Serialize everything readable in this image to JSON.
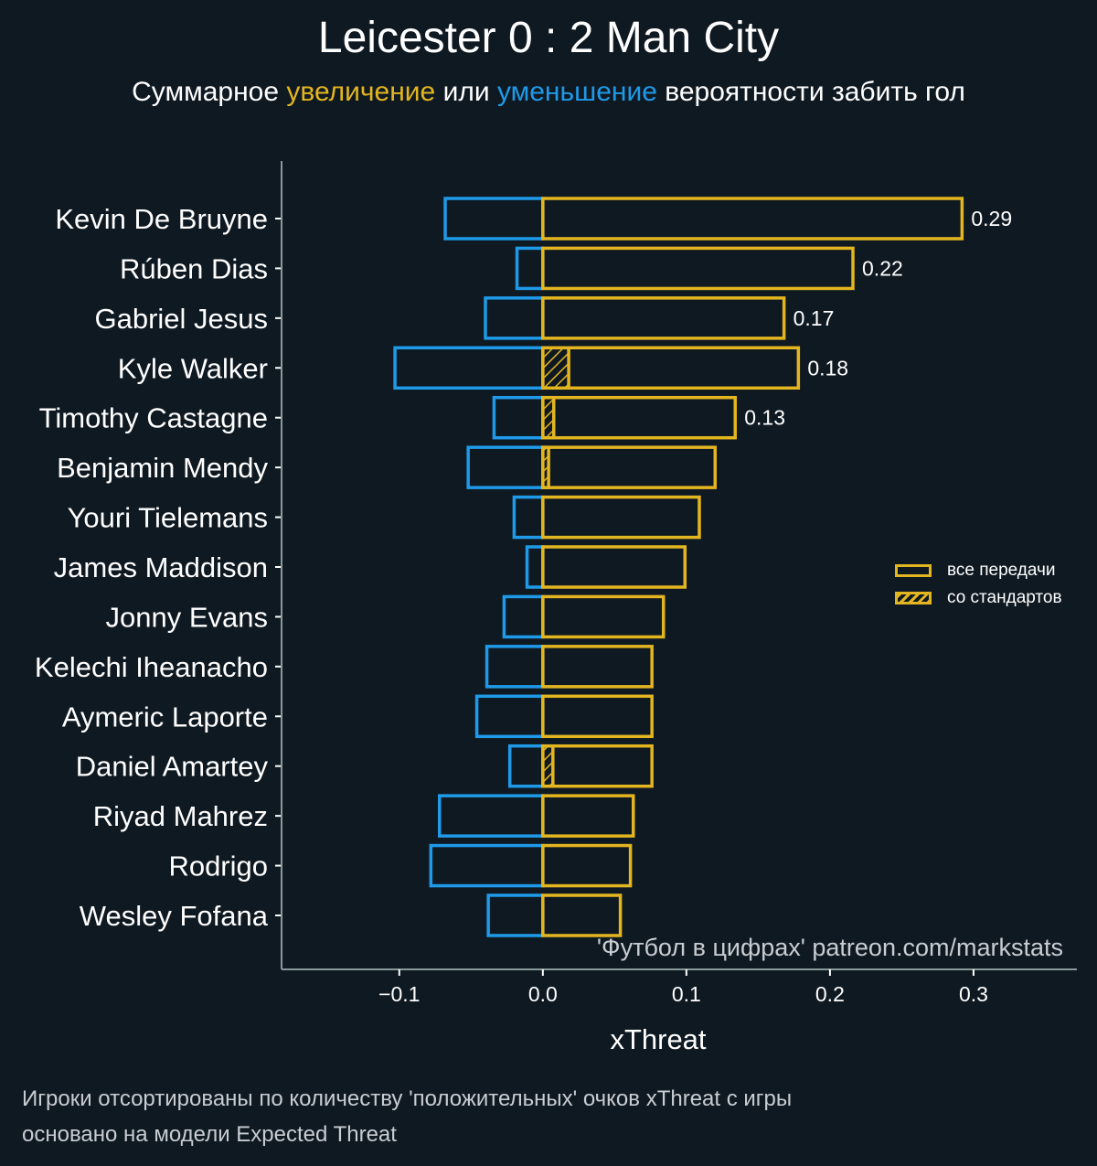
{
  "header": {
    "title": "Leicester 0 : 2 Man City",
    "subtitle_parts": {
      "p1": "Суммарное ",
      "increase": "увеличение",
      "p2": " или ",
      "decrease": "уменьшение",
      "p3": " вероятности забить гол"
    }
  },
  "colors": {
    "background": "#0f1922",
    "positive": "#e3b520",
    "negative": "#1f9ae8",
    "axis": "#8a9a9a",
    "text": "#ffffff",
    "muted_text": "#c8cdd2"
  },
  "legend": {
    "items": [
      {
        "label": "все передачи",
        "style": "outline"
      },
      {
        "label": "со стандартов",
        "style": "hatched"
      }
    ]
  },
  "watermark": "'Футбол в цифрах' patreon.com/markstats",
  "footnotes": [
    "Игроки отсортированы по количеству 'положительных' очков xThreat с игры",
    "основано на модели Expected Threat"
  ],
  "chart_data": {
    "type": "bar",
    "orientation": "horizontal",
    "title": "Leicester 0 : 2 Man City",
    "subtitle": "Суммарное увеличение или уменьшение вероятности забить гол",
    "xlabel": "xThreat",
    "ylabel": "",
    "xlim": [
      -0.182,
      0.372
    ],
    "xticks": [
      -0.1,
      0.0,
      0.1,
      0.2,
      0.3
    ],
    "xtick_labels": [
      "−0.1",
      "0.0",
      "0.1",
      "0.2",
      "0.3"
    ],
    "grid": false,
    "legend_position": "right",
    "categories": [
      "Kevin De Bruyne",
      "Rúben Dias",
      "Gabriel Jesus",
      "Kyle Walker",
      "Timothy Castagne",
      "Benjamin Mendy",
      "Youri Tielemans",
      "James Maddison",
      "Jonny Evans",
      "Kelechi Iheanacho",
      "Aymeric Laporte",
      "Daniel Amartey",
      "Riyad Mahrez",
      "Rodrigo",
      "Wesley Fofana"
    ],
    "series": [
      {
        "name": "увеличение (все передачи)",
        "color": "#e3b520",
        "values": [
          0.292,
          0.216,
          0.168,
          0.178,
          0.134,
          0.12,
          0.109,
          0.099,
          0.084,
          0.076,
          0.076,
          0.076,
          0.063,
          0.061,
          0.054
        ]
      },
      {
        "name": "уменьшение",
        "color": "#1f9ae8",
        "values": [
          -0.068,
          -0.018,
          -0.04,
          -0.103,
          -0.034,
          -0.052,
          -0.02,
          -0.011,
          -0.027,
          -0.039,
          -0.046,
          -0.023,
          -0.072,
          -0.078,
          -0.038
        ]
      },
      {
        "name": "со стандартов",
        "color": "#e3b520",
        "hatched": true,
        "values": [
          0,
          0,
          0,
          0.018,
          0.0076,
          0.004,
          0,
          0,
          0,
          0,
          0,
          0.007,
          0,
          0,
          0
        ]
      }
    ],
    "data_labels": [
      "0.29",
      "0.22",
      "0.17",
      "0.18",
      "0.13",
      "",
      "",
      "",
      "",
      "",
      "",
      "",
      "",
      "",
      ""
    ]
  }
}
